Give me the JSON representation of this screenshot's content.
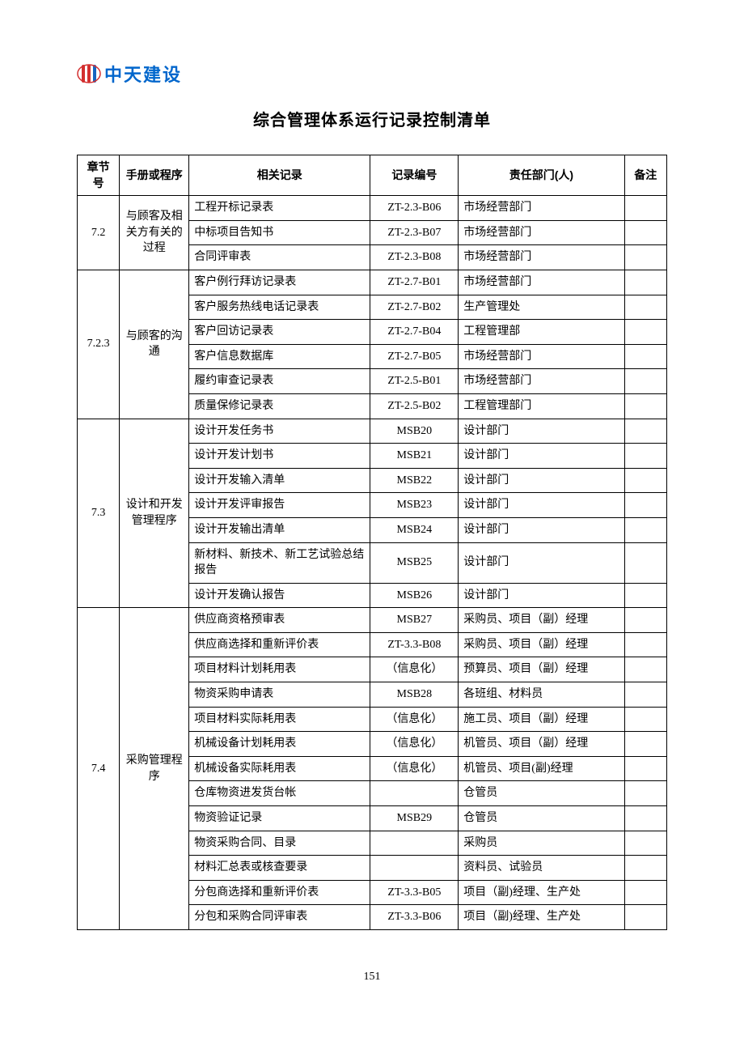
{
  "logo": {
    "company_name": "中天建设",
    "icon_color_red": "#d32f2f",
    "icon_color_blue": "#1565c0"
  },
  "title": "综合管理体系运行记录控制清单",
  "headers": {
    "section": "章节号",
    "manual": "手册或程序",
    "record": "相关记录",
    "code": "记录编号",
    "dept": "责任部门(人)",
    "remark": "备注"
  },
  "groups": [
    {
      "section": "7.2",
      "manual": "与顾客及相关方有关的过程",
      "rows": [
        {
          "record": "工程开标记录表",
          "code": "ZT-2.3-B06",
          "dept": "市场经营部门"
        },
        {
          "record": "中标项目告知书",
          "code": "ZT-2.3-B07",
          "dept": "市场经营部门"
        },
        {
          "record": "合同评审表",
          "code": "ZT-2.3-B08",
          "dept": "市场经营部门"
        }
      ]
    },
    {
      "section": "7.2.3",
      "manual": "与顾客的沟通",
      "rows": [
        {
          "record": "客户例行拜访记录表",
          "code": "ZT-2.7-B01",
          "dept": "市场经营部门"
        },
        {
          "record": "客户服务热线电话记录表",
          "code": "ZT-2.7-B02",
          "dept": "生产管理处"
        },
        {
          "record": "客户回访记录表",
          "code": "ZT-2.7-B04",
          "dept": "工程管理部"
        },
        {
          "record": "客户信息数据库",
          "code": "ZT-2.7-B05",
          "dept": "市场经营部门"
        },
        {
          "record": "履约审查记录表",
          "code": "ZT-2.5-B01",
          "dept": "市场经营部门"
        },
        {
          "record": "质量保修记录表",
          "code": "ZT-2.5-B02",
          "dept": "工程管理部门"
        }
      ]
    },
    {
      "section": "7.3",
      "manual": "设计和开发管理程序",
      "rows": [
        {
          "record": "设计开发任务书",
          "code": "MSB20",
          "dept": "设计部门"
        },
        {
          "record": "设计开发计划书",
          "code": "MSB21",
          "dept": "设计部门"
        },
        {
          "record": "设计开发输入清单",
          "code": "MSB22",
          "dept": "设计部门"
        },
        {
          "record": "设计开发评审报告",
          "code": "MSB23",
          "dept": "设计部门"
        },
        {
          "record": "设计开发输出清单",
          "code": "MSB24",
          "dept": "设计部门"
        },
        {
          "record": "新材料、新技术、新工艺试验总结报告",
          "code": "MSB25",
          "dept": "设计部门"
        },
        {
          "record": "设计开发确认报告",
          "code": "MSB26",
          "dept": "设计部门"
        }
      ]
    },
    {
      "section": "7.4",
      "manual": "采购管理程序",
      "rows": [
        {
          "record": "供应商资格预审表",
          "code": "MSB27",
          "dept": "采购员、项目（副）经理"
        },
        {
          "record": "供应商选择和重新评价表",
          "code": "ZT-3.3-B08",
          "dept": "采购员、项目（副）经理"
        },
        {
          "record": "项目材料计划耗用表",
          "code": "（信息化）",
          "dept": "预算员、项目（副）经理"
        },
        {
          "record": "物资采购申请表",
          "code": "MSB28",
          "dept": "各班组、材料员"
        },
        {
          "record": "项目材料实际耗用表",
          "code": "（信息化）",
          "dept": "施工员、项目（副）经理"
        },
        {
          "record": "机械设备计划耗用表",
          "code": "（信息化）",
          "dept": "机管员、项目（副）经理"
        },
        {
          "record": "机械设备实际耗用表",
          "code": "（信息化）",
          "dept": "机管员、项目(副)经理"
        },
        {
          "record": "仓库物资进发货台帐",
          "code": "",
          "dept": "仓管员"
        },
        {
          "record": "物资验证记录",
          "code": "MSB29",
          "dept": "仓管员"
        },
        {
          "record": "物资采购合同、目录",
          "code": "",
          "dept": "采购员"
        },
        {
          "record": "材料汇总表或核查要录",
          "code": "",
          "dept": "资料员、试验员"
        },
        {
          "record": "分包商选择和重新评价表",
          "code": "ZT-3.3-B05",
          "dept": "项目（副)经理、生产处"
        },
        {
          "record": "分包和采购合同评审表",
          "code": "ZT-3.3-B06",
          "dept": "项目（副)经理、生产处"
        }
      ]
    }
  ],
  "page_number": "151",
  "table_style": {
    "border_color": "#000000",
    "background_color": "#ffffff",
    "font_size": 14,
    "header_font_weight": "bold"
  }
}
